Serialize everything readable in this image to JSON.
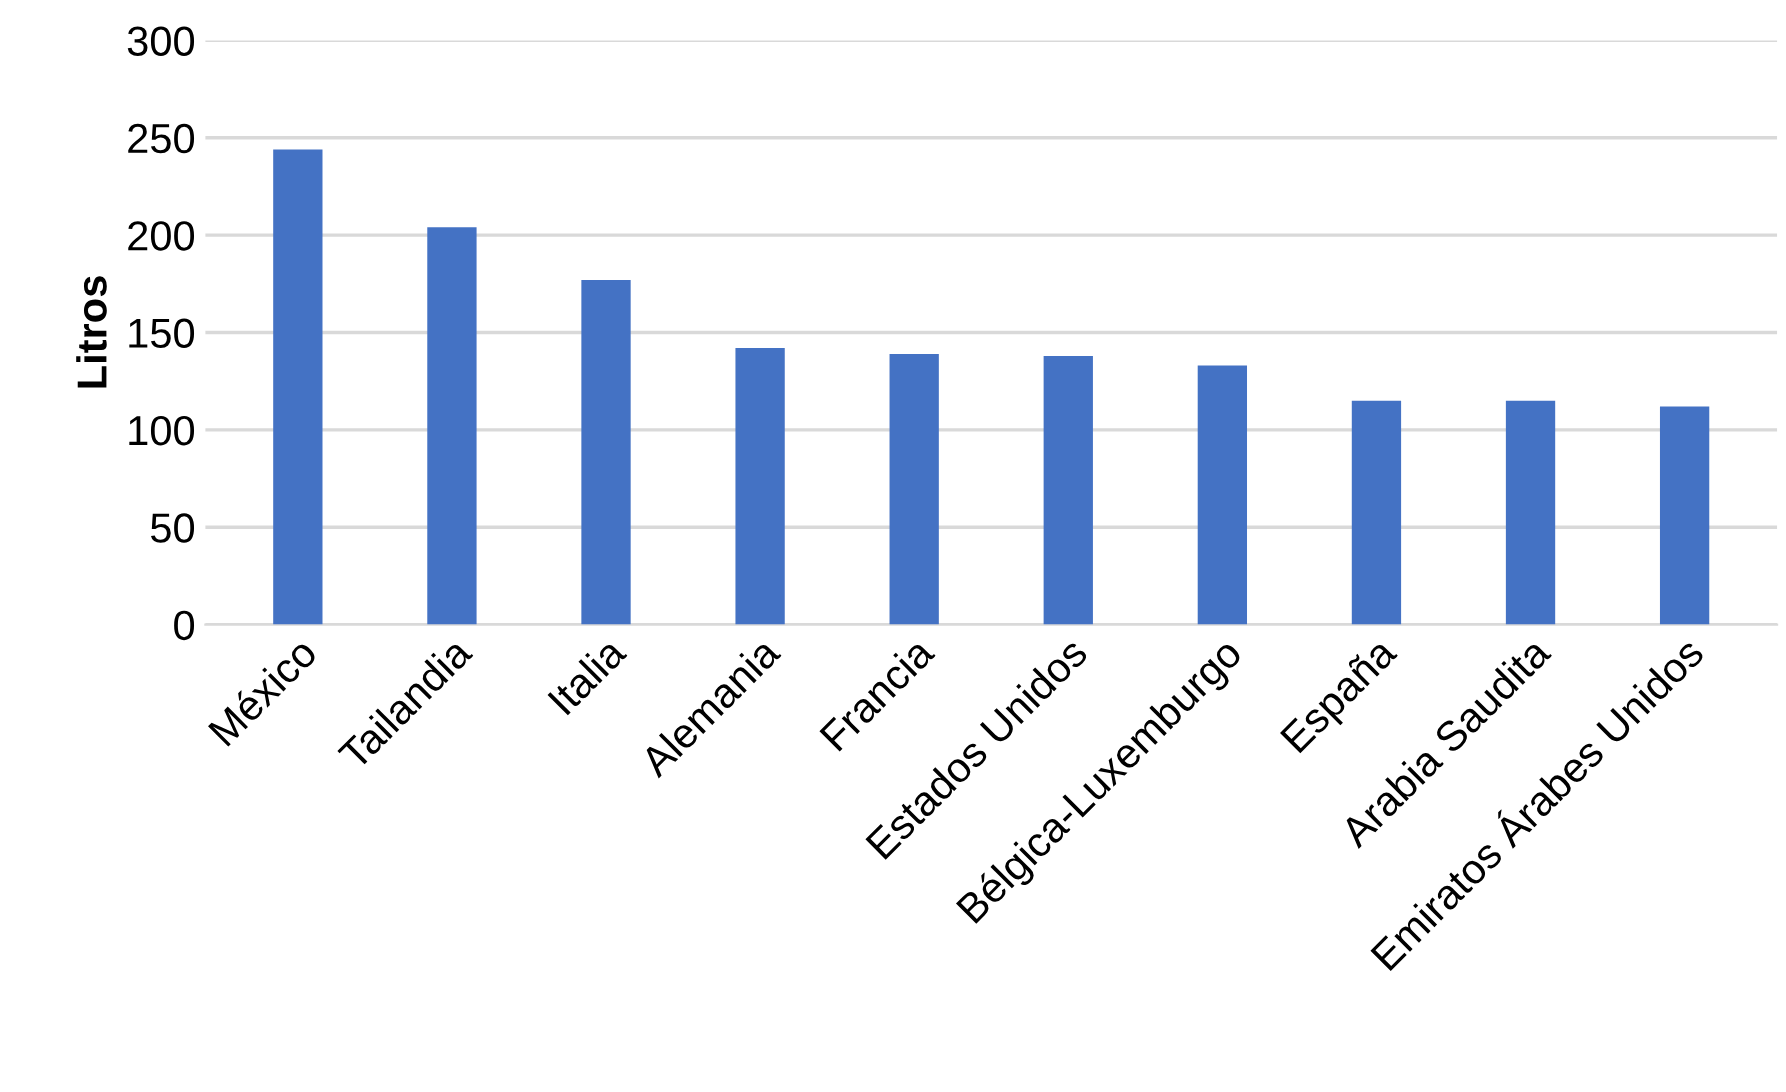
{
  "chart_data": {
    "type": "bar",
    "ylabel": "Litros",
    "categories": [
      "México",
      "Tailandia",
      "Italia",
      "Alemania",
      "Francia",
      "Estados Unidos",
      "Bélgica-Luxemburgo",
      "España",
      "Arabia Saudita",
      "Emiratos Árabes Unidos"
    ],
    "values": [
      244,
      204,
      177,
      142,
      139,
      138,
      133,
      115,
      115,
      112
    ],
    "color": "#4472c4",
    "ylim": [
      0,
      300
    ],
    "yticks": [
      0,
      50,
      100,
      150,
      200,
      250,
      300
    ],
    "grid": "y",
    "legend": false
  }
}
